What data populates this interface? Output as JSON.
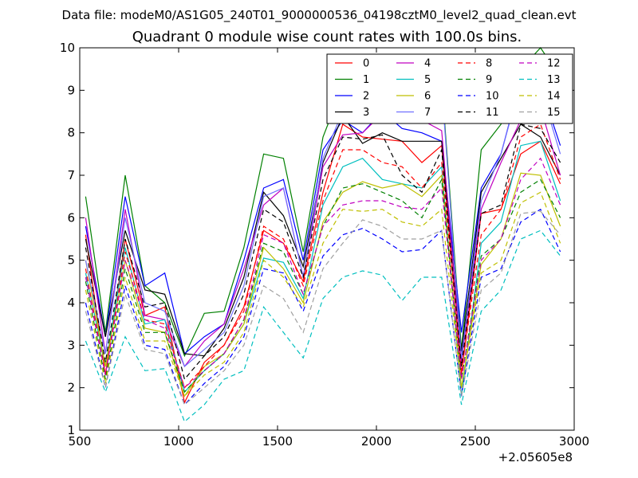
{
  "suptitle": "Data file: modeM0/AS1G05_240T01_9000000536_04198cztM0_level2_quad_clean.evt",
  "chart_data": {
    "type": "line",
    "title": "Quadrant 0 module wise count rates with 100.0s bins.",
    "xlabel": "",
    "ylabel": "",
    "x_offset_label": "+2.05605e8",
    "xlim": [
      500,
      3000
    ],
    "ylim": [
      1,
      10
    ],
    "xticks": [
      500,
      1000,
      1500,
      2000,
      2500,
      3000
    ],
    "yticks": [
      1,
      2,
      3,
      4,
      5,
      6,
      7,
      8,
      9,
      10
    ],
    "grid": false,
    "legend": "top-right",
    "x": [
      530,
      630,
      730,
      830,
      930,
      1030,
      1130,
      1230,
      1330,
      1430,
      1530,
      1630,
      1730,
      1830,
      1930,
      2030,
      2130,
      2230,
      2330,
      2430,
      2530,
      2630,
      2730,
      2830,
      2930
    ],
    "series": [
      {
        "name": "0",
        "color": "#ff0000",
        "dash": "solid",
        "values": [
          5.6,
          2.3,
          5.5,
          3.7,
          3.9,
          1.65,
          2.6,
          3.0,
          3.9,
          5.7,
          5.4,
          4.5,
          6.6,
          8.2,
          7.9,
          7.85,
          7.8,
          7.3,
          7.7,
          2.3,
          6.1,
          6.2,
          7.5,
          7.8,
          6.8
        ]
      },
      {
        "name": "1",
        "color": "#008000",
        "dash": "solid",
        "values": [
          6.5,
          3.3,
          7.0,
          4.4,
          4.0,
          2.75,
          3.75,
          3.8,
          5.3,
          7.5,
          7.4,
          5.2,
          7.9,
          9.1,
          9.4,
          9.8,
          9.2,
          8.9,
          9.2,
          2.9,
          7.6,
          8.2,
          9.5,
          10.0,
          9.3
        ]
      },
      {
        "name": "2",
        "color": "#0000ff",
        "dash": "solid",
        "values": [
          5.8,
          3.2,
          6.5,
          4.4,
          4.7,
          2.8,
          3.2,
          3.5,
          5.0,
          6.7,
          6.9,
          5.0,
          7.6,
          8.3,
          8.0,
          8.5,
          8.1,
          8.0,
          7.8,
          3.3,
          6.7,
          7.5,
          9.25,
          9.1,
          7.7
        ]
      },
      {
        "name": "3",
        "color": "#000000",
        "dash": "solid",
        "values": [
          5.5,
          3.2,
          5.7,
          4.3,
          4.2,
          2.8,
          2.75,
          3.4,
          4.6,
          6.6,
          6.05,
          4.85,
          7.3,
          8.4,
          7.75,
          8.0,
          7.8,
          7.8,
          7.8,
          2.85,
          6.6,
          7.4,
          8.2,
          7.9,
          7.0
        ]
      },
      {
        "name": "4",
        "color": "#c000c0",
        "dash": "solid",
        "values": [
          6.0,
          2.8,
          6.2,
          3.7,
          3.6,
          2.5,
          3.1,
          3.5,
          4.8,
          6.3,
          6.7,
          4.6,
          7.2,
          7.95,
          8.0,
          8.45,
          8.3,
          8.3,
          8.05,
          2.6,
          6.2,
          7.3,
          8.3,
          8.6,
          7.0
        ]
      },
      {
        "name": "5",
        "color": "#00bfbf",
        "dash": "solid",
        "values": [
          4.7,
          2.5,
          5.3,
          3.5,
          3.6,
          1.9,
          2.4,
          2.8,
          3.5,
          5.05,
          4.95,
          4.1,
          6.3,
          7.2,
          7.4,
          6.9,
          6.8,
          6.7,
          7.2,
          1.8,
          5.4,
          5.9,
          7.7,
          7.8,
          6.4
        ]
      },
      {
        "name": "6",
        "color": "#bfbf00",
        "dash": "solid",
        "values": [
          5.0,
          2.5,
          5.0,
          3.4,
          3.3,
          1.8,
          2.5,
          2.8,
          3.5,
          5.3,
          4.8,
          4.0,
          5.9,
          6.6,
          6.85,
          6.7,
          6.8,
          6.5,
          7.0,
          2.0,
          4.9,
          5.5,
          7.05,
          7.0,
          5.8
        ]
      },
      {
        "name": "7",
        "color": "#7070ff",
        "dash": "solid",
        "values": [
          5.0,
          2.8,
          6.0,
          4.0,
          3.8,
          2.5,
          2.9,
          3.3,
          4.4,
          6.5,
          6.7,
          4.6,
          7.4,
          8.5,
          8.5,
          8.85,
          8.5,
          9.05,
          9.1,
          2.7,
          6.4,
          7.5,
          9.2,
          9.05,
          7.5
        ]
      },
      {
        "name": "8",
        "color": "#ff0000",
        "dash": "dashed",
        "values": [
          4.8,
          2.3,
          5.2,
          3.6,
          3.5,
          2.0,
          2.5,
          3.0,
          3.8,
          5.8,
          5.5,
          4.4,
          6.4,
          7.6,
          7.6,
          7.3,
          7.2,
          6.7,
          7.3,
          2.4,
          5.6,
          6.2,
          7.9,
          8.2,
          6.9
        ]
      },
      {
        "name": "9",
        "color": "#008000",
        "dash": "dashed",
        "values": [
          4.5,
          2.2,
          4.8,
          3.3,
          3.3,
          1.9,
          2.4,
          2.8,
          3.6,
          5.4,
          5.2,
          4.2,
          5.8,
          6.7,
          6.8,
          6.6,
          6.4,
          6.0,
          6.9,
          2.2,
          5.1,
          5.5,
          6.6,
          6.9,
          6.0
        ]
      },
      {
        "name": "10",
        "color": "#0000ff",
        "dash": "dashed",
        "values": [
          4.0,
          2.0,
          4.4,
          3.0,
          2.9,
          1.6,
          2.1,
          2.5,
          3.2,
          4.8,
          4.7,
          3.8,
          5.1,
          5.6,
          5.75,
          5.5,
          5.2,
          5.25,
          5.7,
          1.8,
          4.6,
          4.8,
          5.9,
          6.2,
          5.2
        ]
      },
      {
        "name": "11",
        "color": "#000000",
        "dash": "dashed",
        "values": [
          5.3,
          2.6,
          5.5,
          3.9,
          4.0,
          2.2,
          2.75,
          3.2,
          4.2,
          6.2,
          5.9,
          4.6,
          6.9,
          7.9,
          7.85,
          7.95,
          7.0,
          6.6,
          7.6,
          2.5,
          6.1,
          6.3,
          8.2,
          8.1,
          7.3
        ]
      },
      {
        "name": "12",
        "color": "#c000c0",
        "dash": "dashed",
        "values": [
          4.6,
          2.3,
          5.0,
          3.6,
          3.4,
          2.0,
          2.4,
          2.8,
          3.6,
          5.6,
          5.4,
          4.2,
          5.8,
          6.3,
          6.4,
          6.4,
          6.25,
          6.2,
          6.7,
          2.2,
          5.0,
          5.5,
          6.9,
          7.4,
          6.3
        ]
      },
      {
        "name": "13",
        "color": "#00bfbf",
        "dash": "dashed",
        "values": [
          3.1,
          1.9,
          3.2,
          2.4,
          2.45,
          1.2,
          1.6,
          2.2,
          2.4,
          3.9,
          3.3,
          2.7,
          4.1,
          4.6,
          4.75,
          4.65,
          4.05,
          4.6,
          4.6,
          1.6,
          3.8,
          4.3,
          5.5,
          5.7,
          5.1
        ]
      },
      {
        "name": "14",
        "color": "#bfbf00",
        "dash": "dashed",
        "values": [
          4.3,
          2.1,
          4.6,
          3.1,
          3.1,
          1.8,
          2.3,
          2.6,
          3.3,
          5.0,
          4.6,
          3.9,
          5.4,
          6.2,
          6.15,
          6.2,
          5.9,
          5.8,
          6.2,
          2.0,
          4.7,
          5.0,
          6.35,
          6.6,
          5.4
        ]
      },
      {
        "name": "15",
        "color": "#a0a0a0",
        "dash": "dashed",
        "values": [
          3.8,
          2.0,
          4.2,
          2.9,
          2.8,
          1.6,
          2.0,
          2.4,
          3.0,
          4.4,
          4.1,
          3.3,
          4.8,
          5.4,
          5.95,
          5.8,
          5.5,
          5.5,
          5.7,
          1.8,
          4.3,
          4.7,
          6.1,
          6.15,
          5.6
        ]
      }
    ]
  }
}
